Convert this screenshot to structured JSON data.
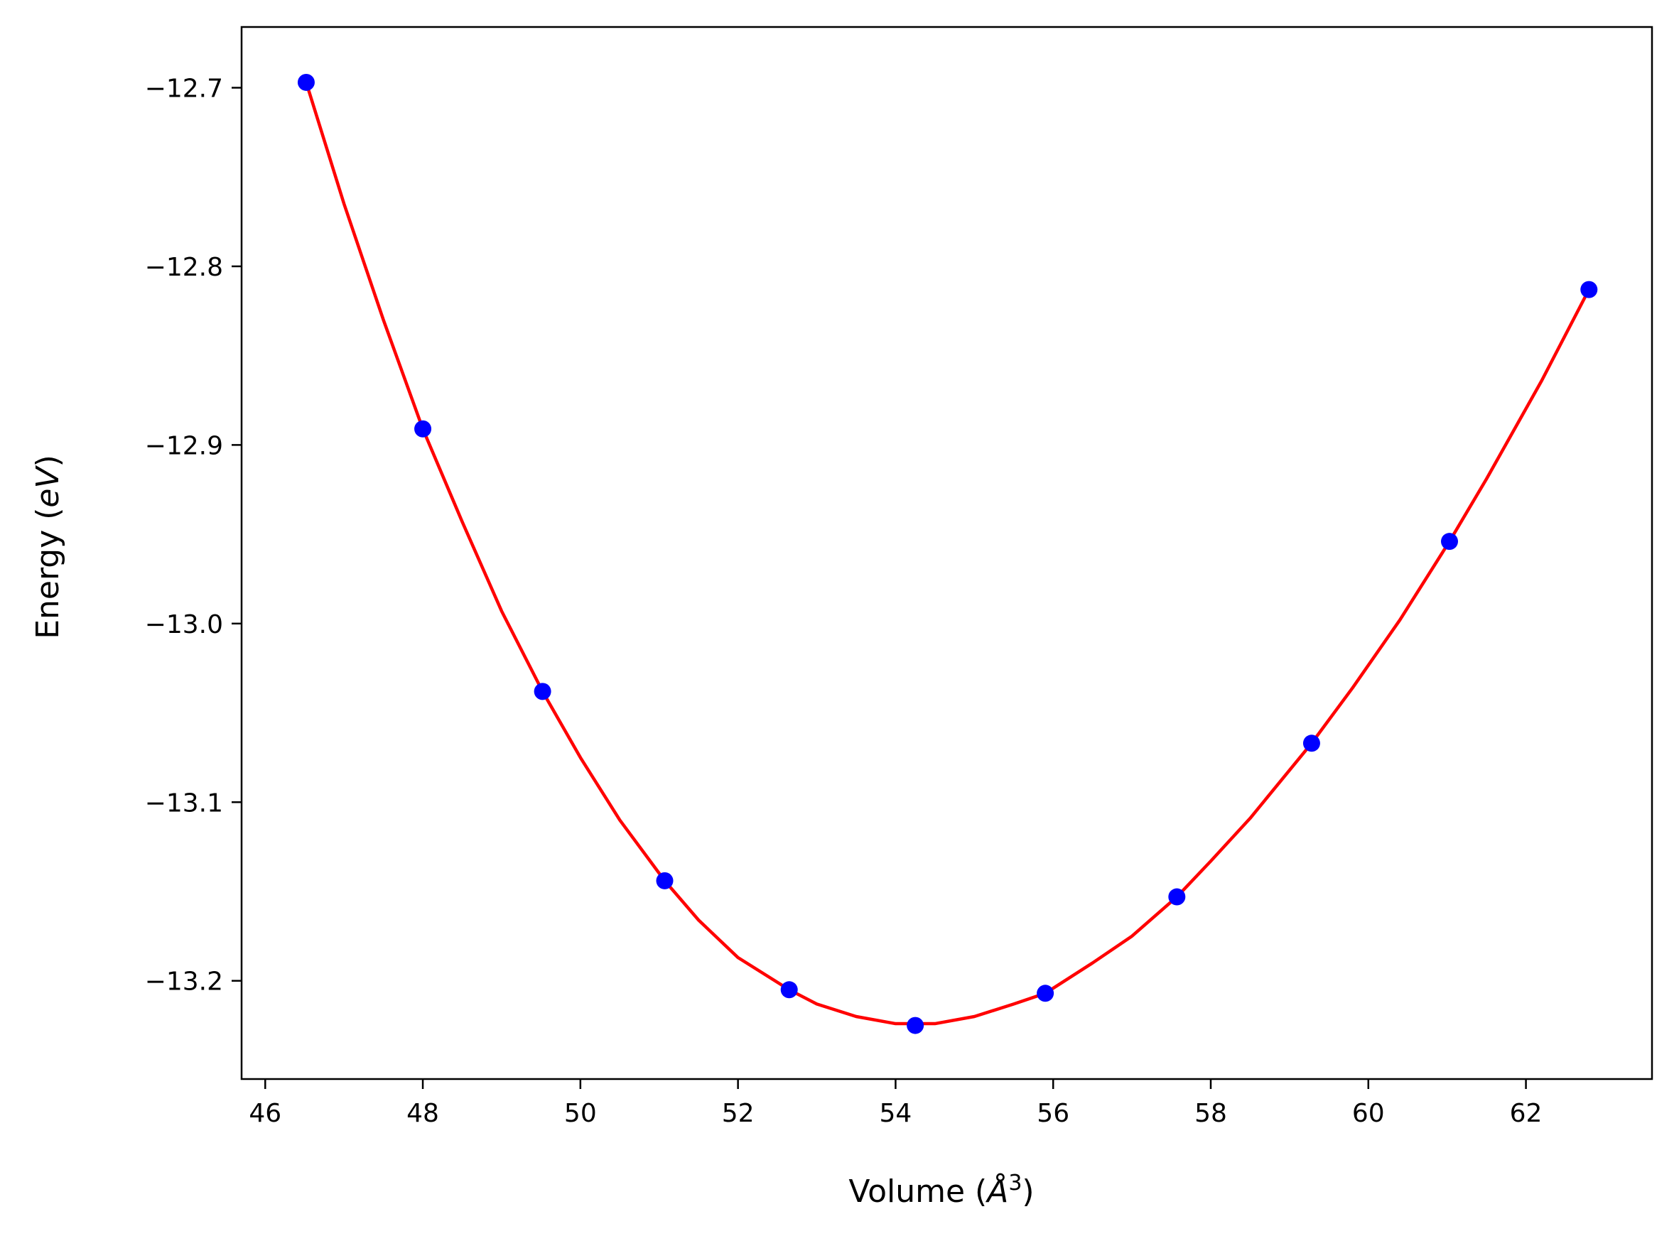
{
  "chart_data": {
    "type": "scatter",
    "xlabel": "Volume",
    "xlabel_unit": "Å",
    "xlabel_unit_exp": "3",
    "ylabel": "Energy",
    "ylabel_unit": "eV",
    "xlim": [
      45.7,
      63.6
    ],
    "ylim": [
      -13.255,
      -12.666
    ],
    "xticks": [
      46,
      48,
      50,
      52,
      54,
      56,
      58,
      60,
      62
    ],
    "xtick_labels": [
      "46",
      "48",
      "50",
      "52",
      "54",
      "56",
      "58",
      "60",
      "62"
    ],
    "yticks": [
      -12.7,
      -12.8,
      -12.9,
      -13.0,
      -13.1,
      -13.2
    ],
    "ytick_labels": [
      "−12.7",
      "−12.8",
      "−12.9",
      "−13.0",
      "−13.1",
      "−13.2"
    ],
    "grid": false,
    "colors": {
      "points": "#0000ff",
      "fit": "#ff0000",
      "axes": "#000000"
    },
    "series": [
      {
        "style": "points",
        "x": [
          46.52,
          48.0,
          49.52,
          51.07,
          52.65,
          54.25,
          55.9,
          57.57,
          59.28,
          61.03,
          62.8
        ],
        "y": [
          -12.697,
          -12.891,
          -13.038,
          -13.144,
          -13.205,
          -13.225,
          -13.207,
          -13.153,
          -13.067,
          -12.954,
          -12.813
        ]
      },
      {
        "style": "fit-curve",
        "x": [
          46.52,
          47.0,
          47.5,
          48.0,
          48.5,
          49.0,
          49.52,
          50.0,
          50.5,
          51.07,
          51.5,
          52.0,
          52.65,
          53.0,
          53.5,
          54.0,
          54.5,
          55.0,
          55.5,
          55.9,
          56.5,
          57.0,
          57.57,
          58.0,
          58.5,
          59.28,
          59.8,
          60.4,
          61.03,
          61.5,
          62.2,
          62.8
        ],
        "y": [
          -12.697,
          -12.765,
          -12.83,
          -12.891,
          -12.943,
          -12.993,
          -13.038,
          -13.075,
          -13.11,
          -13.144,
          -13.166,
          -13.187,
          -13.205,
          -13.213,
          -13.22,
          -13.224,
          -13.224,
          -13.22,
          -13.213,
          -13.207,
          -13.19,
          -13.175,
          -13.153,
          -13.133,
          -13.109,
          -13.067,
          -13.036,
          -12.998,
          -12.954,
          -12.919,
          -12.864,
          -12.813
        ]
      }
    ]
  }
}
